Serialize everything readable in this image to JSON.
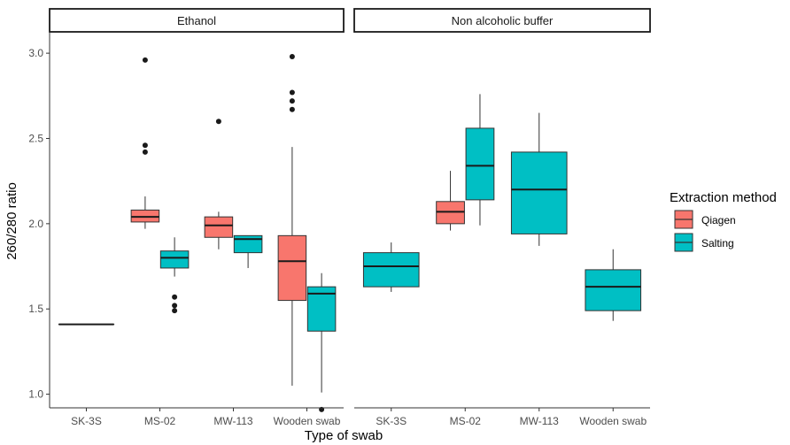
{
  "chart_data": {
    "type": "boxplot",
    "facets": [
      "Ethanol",
      "Non alcoholic buffer"
    ],
    "categories": [
      "SK-3S",
      "MS-02",
      "MW-113",
      "Wooden swab"
    ],
    "xlabel": "Type of swab",
    "ylabel": "260/280 ratio",
    "ylim": [
      0.92,
      3.12
    ],
    "yticks": [
      "1.0",
      "1.5",
      "2.0",
      "2.5",
      "3.0"
    ],
    "legend": {
      "title": "Extraction method",
      "placement": "right",
      "entries": [
        {
          "name": "Qiagen",
          "color": "#F8766D"
        },
        {
          "name": "Salting",
          "color": "#00BFC4"
        }
      ]
    },
    "boxes": [
      {
        "facet": 0,
        "category": "SK-3S",
        "group": "single",
        "method": "Salting",
        "min": 1.41,
        "q1": 1.41,
        "median": 1.41,
        "q3": 1.41,
        "max": 1.41,
        "outliers": []
      },
      {
        "facet": 0,
        "category": "MS-02",
        "group": "left",
        "method": "Qiagen",
        "min": 1.97,
        "q1": 2.01,
        "median": 2.04,
        "q3": 2.08,
        "max": 2.16,
        "outliers": [
          2.96,
          2.46,
          2.42
        ]
      },
      {
        "facet": 0,
        "category": "MS-02",
        "group": "right",
        "method": "Salting",
        "min": 1.69,
        "q1": 1.74,
        "median": 1.8,
        "q3": 1.84,
        "max": 1.92,
        "outliers": [
          1.57,
          1.52,
          1.49
        ]
      },
      {
        "facet": 0,
        "category": "MW-113",
        "group": "left",
        "method": "Qiagen",
        "min": 1.85,
        "q1": 1.92,
        "median": 1.99,
        "q3": 2.04,
        "max": 2.07,
        "outliers": [
          2.6
        ]
      },
      {
        "facet": 0,
        "category": "MW-113",
        "group": "right",
        "method": "Salting",
        "min": 1.74,
        "q1": 1.83,
        "median": 1.91,
        "q3": 1.93,
        "max": 1.93,
        "outliers": []
      },
      {
        "facet": 0,
        "category": "Wooden swab",
        "group": "left",
        "method": "Qiagen",
        "min": 1.05,
        "q1": 1.55,
        "median": 1.78,
        "q3": 1.93,
        "max": 2.45,
        "outliers": [
          2.98,
          2.77,
          2.72,
          2.67
        ]
      },
      {
        "facet": 0,
        "category": "Wooden swab",
        "group": "right",
        "method": "Salting",
        "min": 1.01,
        "q1": 1.37,
        "median": 1.59,
        "q3": 1.63,
        "max": 1.71,
        "outliers": [
          0.91
        ]
      },
      {
        "facet": 1,
        "category": "SK-3S",
        "group": "single",
        "method": "Salting",
        "min": 1.6,
        "q1": 1.63,
        "median": 1.75,
        "q3": 1.83,
        "max": 1.89,
        "outliers": []
      },
      {
        "facet": 1,
        "category": "MS-02",
        "group": "left",
        "method": "Qiagen",
        "min": 1.96,
        "q1": 2.0,
        "median": 2.07,
        "q3": 2.13,
        "max": 2.31,
        "outliers": []
      },
      {
        "facet": 1,
        "category": "MS-02",
        "group": "right",
        "method": "Salting",
        "min": 1.99,
        "q1": 2.14,
        "median": 2.34,
        "q3": 2.56,
        "max": 2.76,
        "outliers": []
      },
      {
        "facet": 1,
        "category": "MW-113",
        "group": "single",
        "method": "Salting",
        "min": 1.87,
        "q1": 1.94,
        "median": 2.2,
        "q3": 2.42,
        "max": 2.65,
        "outliers": []
      },
      {
        "facet": 1,
        "category": "Wooden swab",
        "group": "single",
        "method": "Salting",
        "min": 1.43,
        "q1": 1.49,
        "median": 1.63,
        "q3": 1.73,
        "max": 1.85,
        "outliers": []
      }
    ]
  }
}
